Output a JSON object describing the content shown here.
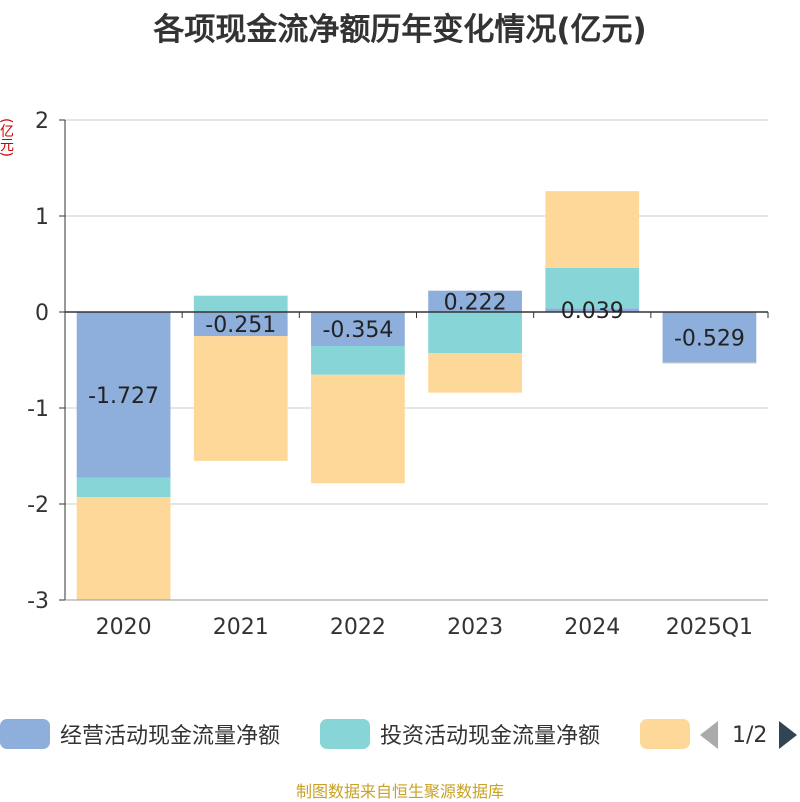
{
  "chart_data": {
    "type": "bar",
    "stacked": true,
    "title": "各项现金流净额历年变化情况(亿元)",
    "y_unit": "(亿元)",
    "categories": [
      "2020",
      "2021",
      "2022",
      "2023",
      "2024",
      "2025Q1"
    ],
    "ylim": [
      -3,
      2
    ],
    "yticks": [
      2,
      1,
      0,
      -1,
      -2,
      -3
    ],
    "grid": true,
    "series": [
      {
        "name": "经营活动现金流量净额",
        "color": "#8eaedb",
        "values": [
          -1.727,
          -0.251,
          -0.354,
          0.222,
          0.039,
          -0.529
        ],
        "labels": [
          "-1.727",
          "-0.251",
          "-0.354",
          "0.222",
          "0.039",
          "-0.529"
        ]
      },
      {
        "name": "投资活动现金流量净额",
        "color": "#87d5d6",
        "values": [
          -0.2,
          0.17,
          -0.3,
          -0.43,
          0.42,
          0
        ]
      },
      {
        "name": "",
        "color": "#fed899",
        "values": [
          -1.07,
          -1.3,
          -1.13,
          -0.41,
          0.8,
          -0.01
        ]
      }
    ]
  },
  "legend": {
    "items": [
      {
        "label": "经营活动现金流量净额",
        "color": "#8eaedb"
      },
      {
        "label": "投资活动现金流量净额",
        "color": "#87d5d6"
      },
      {
        "label": "",
        "color": "#fed899"
      }
    ],
    "page": "1/2"
  },
  "source": "制图数据来自恒生聚源数据库"
}
